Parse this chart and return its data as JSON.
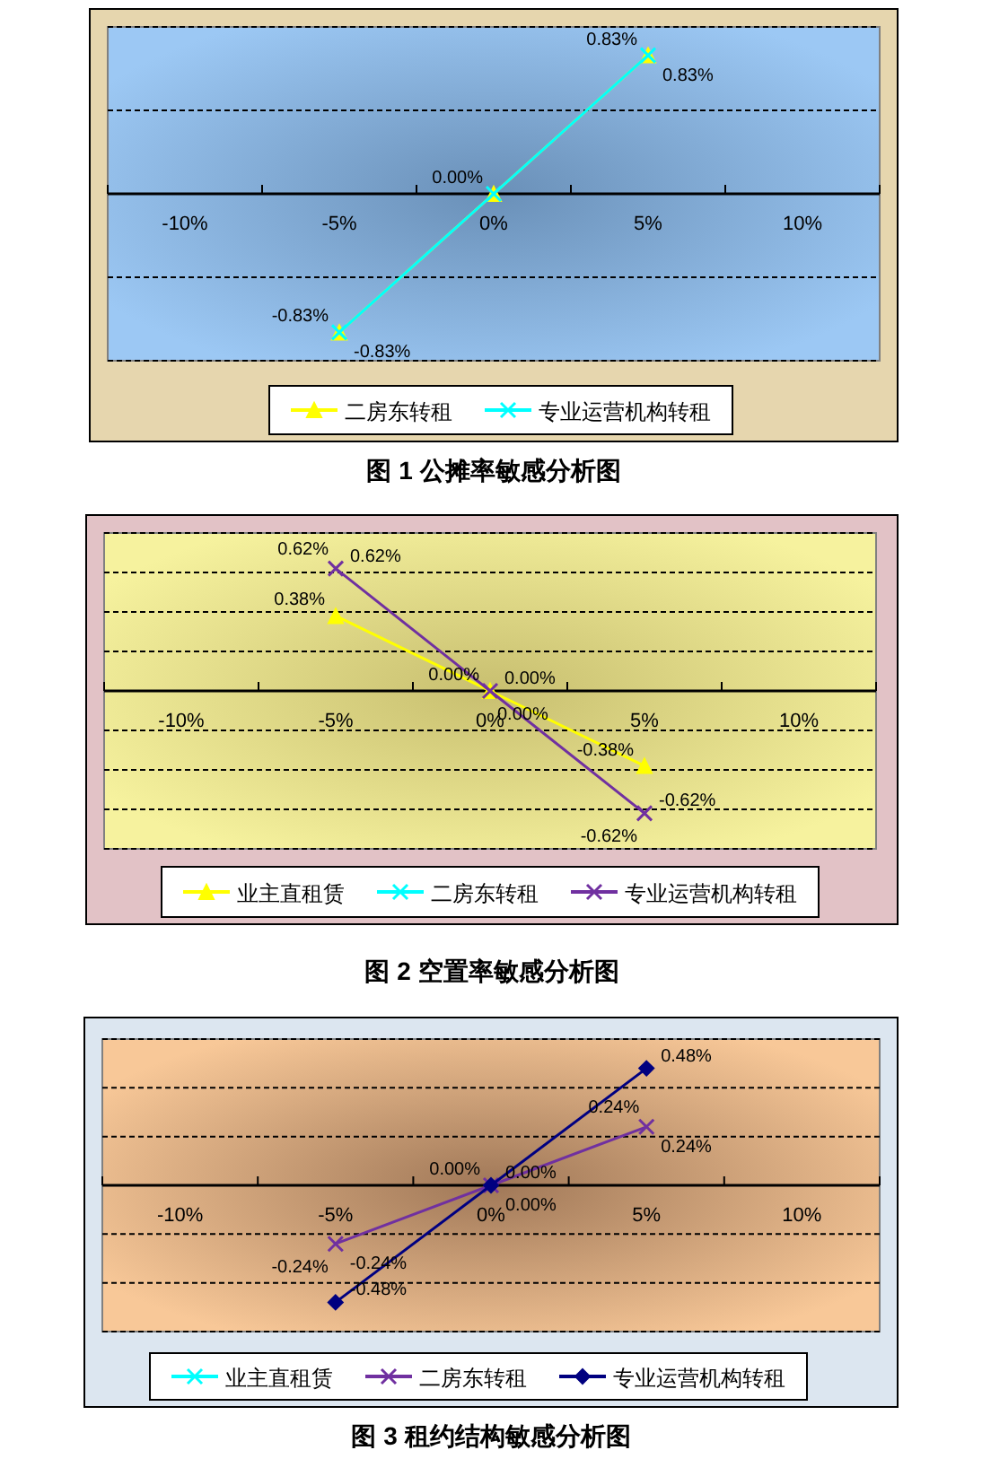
{
  "chart_data": [
    {
      "type": "line",
      "title": "图 1 公摊率敏感分析图",
      "categories": [
        "-10%",
        "-5%",
        "0%",
        "5%",
        "10%"
      ],
      "ylim": [
        -1,
        1
      ],
      "yticks": [
        {
          "value": -1,
          "label": null
        },
        {
          "value": -0.5,
          "label": null
        },
        {
          "value": 0,
          "label": null
        },
        {
          "value": 0.5,
          "label": null
        },
        {
          "value": 1,
          "label": null
        }
      ],
      "grid": "y",
      "legend": "bottom",
      "tick_labels": "x",
      "series": [
        {
          "name": "二房东转租",
          "color": "#ffff00",
          "marker": "triangle",
          "values": [
            null,
            -0.83,
            0,
            0.83,
            null
          ],
          "value_labels": [
            null,
            "-0.83%",
            "0.00%",
            "0.83%",
            null
          ]
        },
        {
          "name": "专业运营机构转租",
          "color": "#00ffff",
          "marker": "cross",
          "values": [
            null,
            -0.83,
            0,
            0.83,
            null
          ],
          "value_labels": [
            null,
            "-0.83%",
            null,
            "0.83%",
            null
          ]
        }
      ]
    },
    {
      "type": "line",
      "title": "图 2 空置率敏感分析图",
      "categories": [
        "-10%",
        "-5%",
        "0%",
        "5%",
        "10%"
      ],
      "ylim": [
        -0.8,
        0.8
      ],
      "yticks": [
        {
          "value": -0.8,
          "label": null
        },
        {
          "value": -0.6,
          "label": null
        },
        {
          "value": -0.4,
          "label": null
        },
        {
          "value": -0.2,
          "label": null
        },
        {
          "value": 0,
          "label": null
        },
        {
          "value": 0.2,
          "label": null
        },
        {
          "value": 0.4,
          "label": null
        },
        {
          "value": 0.6,
          "label": null
        },
        {
          "value": 0.8,
          "label": null
        }
      ],
      "grid": "y",
      "legend": "bottom",
      "tick_labels": "x",
      "series": [
        {
          "name": "业主直租赁",
          "color": "#ffff00",
          "marker": "triangle",
          "values": [
            null,
            0.38,
            0,
            -0.38,
            null
          ],
          "value_labels": [
            null,
            "0.38%",
            "0.00%",
            "-0.38%",
            null
          ]
        },
        {
          "name": "二房东转租",
          "color": "#00ffff",
          "marker": "cross",
          "values": [
            null,
            null,
            null,
            null,
            null
          ]
        },
        {
          "name": "专业运营机构转租",
          "color": "#7030a0",
          "marker": "cross",
          "values": [
            null,
            0.62,
            0,
            -0.62,
            null
          ],
          "value_labels": [
            null,
            "0.62%",
            "0.00%",
            "-0.62%",
            null
          ]
        }
      ],
      "annotations": [
        {
          "text": "0.62%",
          "x": "-5%",
          "y": 0.62
        },
        {
          "text": "0.00%",
          "x": "0%",
          "y": 0
        },
        {
          "text": "-0.62%",
          "x": "5%",
          "y": -0.62
        }
      ]
    },
    {
      "type": "line",
      "title": "图 3 租约结构敏感分析图",
      "categories": [
        "-10%",
        "-5%",
        "0%",
        "5%",
        "10%"
      ],
      "ylim": [
        -0.6,
        0.6
      ],
      "yticks": [
        {
          "value": -0.6,
          "label": null
        },
        {
          "value": -0.4,
          "label": null
        },
        {
          "value": -0.2,
          "label": null
        },
        {
          "value": 0,
          "label": null
        },
        {
          "value": 0.2,
          "label": null
        },
        {
          "value": 0.4,
          "label": null
        },
        {
          "value": 0.6,
          "label": null
        }
      ],
      "grid": "y",
      "legend": "bottom",
      "tick_labels": "x",
      "series": [
        {
          "name": "业主直租赁",
          "color": "#00ffff",
          "marker": "cross",
          "values": [
            null,
            null,
            null,
            null,
            null
          ]
        },
        {
          "name": "二房东转租",
          "color": "#7030a0",
          "marker": "cross",
          "values": [
            null,
            -0.24,
            0,
            0.24,
            null
          ],
          "value_labels": [
            null,
            "-0.24%",
            "0.00%",
            "0.24%",
            null
          ]
        },
        {
          "name": "专业运营机构转租",
          "color": "#000080",
          "marker": "diamond",
          "values": [
            null,
            -0.48,
            0,
            0.48,
            null
          ],
          "value_labels": [
            null,
            "-0.48%",
            "0.00%",
            "0.48%",
            null
          ]
        }
      ],
      "annotations": [
        {
          "text": "-0.24%",
          "x": "-5%",
          "y": -0.24
        },
        {
          "text": "0.00%",
          "x": "0%",
          "y": 0
        },
        {
          "text": "0.24%",
          "x": "5%",
          "y": 0.24
        }
      ]
    }
  ]
}
